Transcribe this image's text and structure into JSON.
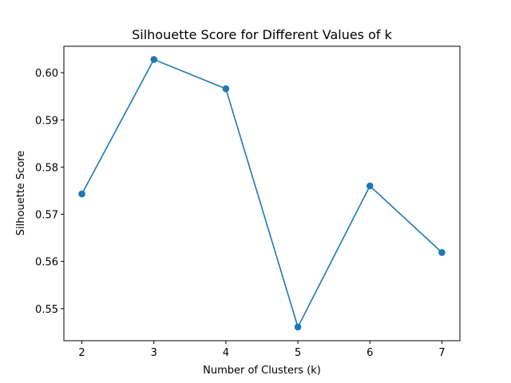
{
  "chart_data": {
    "type": "line",
    "title": "Silhouette Score for Different Values of k",
    "xlabel": "Number of Clusters (k)",
    "ylabel": "Silhouette Score",
    "x": [
      2,
      3,
      4,
      5,
      6,
      7
    ],
    "series": [
      {
        "values": [
          0.5743,
          0.6028,
          0.5966,
          0.5461,
          0.576,
          0.5619
        ],
        "color": "#1f77b4",
        "marker": "circle"
      }
    ],
    "x_ticks": [
      "2",
      "3",
      "4",
      "5",
      "6",
      "7"
    ],
    "y_ticks": [
      "0.55",
      "0.56",
      "0.57",
      "0.58",
      "0.59",
      "0.60"
    ],
    "xlim": [
      1.75,
      7.25
    ],
    "ylim": [
      0.5432,
      0.6056
    ],
    "grid": false
  }
}
